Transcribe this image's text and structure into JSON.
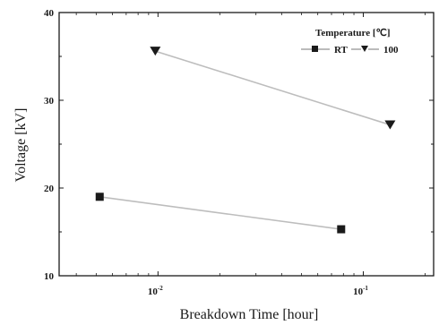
{
  "chart_data": {
    "type": "line",
    "xlabel": "Breakdown Time [hour]",
    "ylabel": "Voltage [kV]",
    "x_scale": "log",
    "xlim": [
      0.0033,
      0.22
    ],
    "ylim": [
      10,
      40
    ],
    "y_ticks": [
      10,
      20,
      30,
      40
    ],
    "x_ticks": [
      {
        "value": 0.01,
        "base": "10",
        "exponent": "-2"
      },
      {
        "value": 0.1,
        "base": "10",
        "exponent": "-1"
      }
    ],
    "legend": {
      "title": "Temperature [℃]",
      "position": "top-right"
    },
    "series": [
      {
        "name": "RT",
        "marker": "square",
        "x": [
          0.0052,
          0.078
        ],
        "y": [
          19.0,
          15.3
        ]
      },
      {
        "name": "100",
        "marker": "triangle-down",
        "x": [
          0.0097,
          0.135
        ],
        "y": [
          35.6,
          27.2
        ]
      }
    ],
    "colors": {
      "marker": "#1a1a1a",
      "line": "#bdbdbd",
      "axis": "#1a1a1a"
    }
  }
}
